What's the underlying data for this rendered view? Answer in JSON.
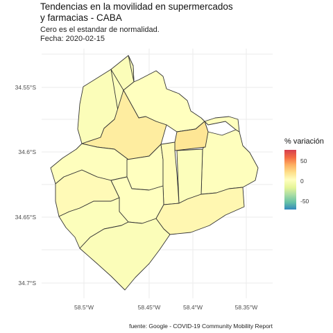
{
  "title_lines": [
    "Tendencias en la movilidad en supermercados",
    "y farmacias - CABA"
  ],
  "subtitle_lines": [
    "Cero es el estandar de normalidad.",
    "Fecha: 2020-02-15"
  ],
  "caption": "fuente: Google - COVID-19 Community Mobility Report",
  "axes": {
    "y_ticks": [
      "34.55°S",
      "34.6°S",
      "34.65°S",
      "34.7°S"
    ],
    "x_ticks": [
      "58.5°W",
      "58.45°W",
      "58.4°W",
      "58.35°W"
    ]
  },
  "legend": {
    "title": "% variación",
    "ticks": [
      "50",
      "0",
      "-50"
    ],
    "scale_min": -70,
    "scale_max": 80,
    "colors": [
      "#3288bd",
      "#66c2a5",
      "#abdda4",
      "#e6f598",
      "#ffffbf",
      "#fee08b",
      "#fdae61",
      "#f46d43",
      "#d53e4f"
    ]
  },
  "chart_data": {
    "type": "choropleth",
    "variable": "% variación",
    "regions": [
      {
        "value": 2
      },
      {
        "value": 3
      },
      {
        "value": 5
      },
      {
        "value": 16
      },
      {
        "value": 4
      },
      {
        "value": 20
      },
      {
        "value": 4
      },
      {
        "value": 5
      },
      {
        "value": 7
      },
      {
        "value": 3
      },
      {
        "value": 8
      },
      {
        "value": 5
      },
      {
        "value": 10
      },
      {
        "value": 3
      },
      {
        "value": 2
      }
    ]
  }
}
